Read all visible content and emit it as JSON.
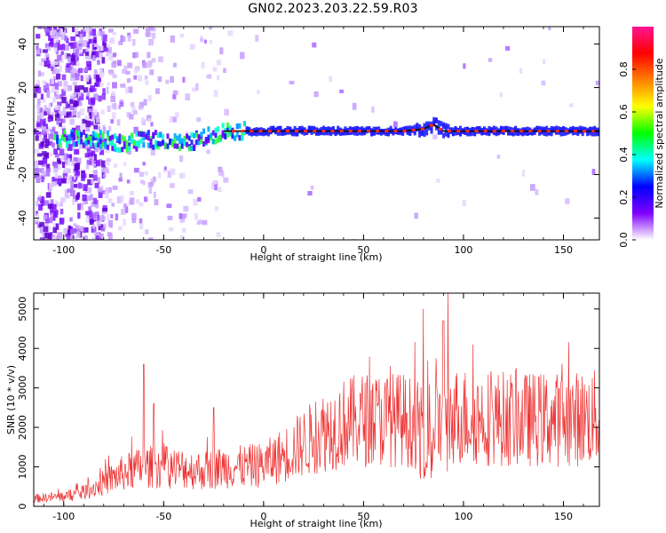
{
  "title": "GN02.2023.203.22.59.R03",
  "chart_data": [
    {
      "type": "heatmap",
      "xlabel": "Height of straight line (km)",
      "ylabel": "Frequency (Hz)",
      "xlim": [
        -115,
        168
      ],
      "ylim": [
        -50,
        48
      ],
      "xticks": [
        "-100",
        "-50",
        "0",
        "50",
        "100",
        "150"
      ],
      "yticks": [
        "-40",
        "-20",
        "0",
        "20",
        "40"
      ],
      "colorbar": {
        "label": "Normalized spectral amplitude",
        "range": [
          0,
          1
        ],
        "ticks": [
          "0.0",
          "0.2",
          "0.4",
          "0.6",
          "0.8"
        ],
        "colors": [
          "#ffffff",
          "#7f00ff",
          "#0000ff",
          "#00ffff",
          "#00ff00",
          "#ffff00",
          "#ff8000",
          "#ff0000",
          "#ff1493"
        ]
      },
      "trace": [
        {
          "x": -100,
          "y": -3
        },
        {
          "x": -90,
          "y": -4
        },
        {
          "x": -80,
          "y": -4
        },
        {
          "x": -70,
          "y": -6
        },
        {
          "x": -60,
          "y": -4
        },
        {
          "x": -50,
          "y": -4
        },
        {
          "x": -40,
          "y": -6
        },
        {
          "x": -30,
          "y": -3
        },
        {
          "x": -20,
          "y": 0
        },
        {
          "x": -10,
          "y": 0
        },
        {
          "x": 0,
          "y": 0
        },
        {
          "x": 50,
          "y": 0
        },
        {
          "x": 70,
          "y": 0
        },
        {
          "x": 80,
          "y": 1
        },
        {
          "x": 85,
          "y": 3
        },
        {
          "x": 90,
          "y": 0
        },
        {
          "x": 168,
          "y": 0
        }
      ]
    },
    {
      "type": "line",
      "xlabel": "Height of straight line (km)",
      "ylabel": "SNR (10 * v/v)",
      "xlim": [
        -115,
        168
      ],
      "ylim": [
        0,
        5400
      ],
      "xticks": [
        "-100",
        "-50",
        "0",
        "50",
        "100",
        "150"
      ],
      "yticks": [
        "0",
        "1000",
        "2000",
        "3000",
        "4000",
        "5000"
      ],
      "color": "#ee3333",
      "envelope": [
        {
          "x": -115,
          "y": 200
        },
        {
          "x": -100,
          "y": 250
        },
        {
          "x": -90,
          "y": 350
        },
        {
          "x": -80,
          "y": 600
        },
        {
          "x": -70,
          "y": 850
        },
        {
          "x": -60,
          "y": 1000
        },
        {
          "x": -50,
          "y": 1000
        },
        {
          "x": -40,
          "y": 950
        },
        {
          "x": -30,
          "y": 900
        },
        {
          "x": -20,
          "y": 1000
        },
        {
          "x": -10,
          "y": 1000
        },
        {
          "x": 0,
          "y": 1050
        },
        {
          "x": 10,
          "y": 1300
        },
        {
          "x": 20,
          "y": 1600
        },
        {
          "x": 30,
          "y": 1900
        },
        {
          "x": 40,
          "y": 2100
        },
        {
          "x": 50,
          "y": 2200
        },
        {
          "x": 60,
          "y": 2200
        },
        {
          "x": 70,
          "y": 2200
        },
        {
          "x": 80,
          "y": 2000
        },
        {
          "x": 90,
          "y": 2000
        },
        {
          "x": 95,
          "y": 2300
        },
        {
          "x": 110,
          "y": 2250
        },
        {
          "x": 130,
          "y": 2200
        },
        {
          "x": 150,
          "y": 2200
        },
        {
          "x": 168,
          "y": 2250
        }
      ],
      "peaks": [
        {
          "x": -60,
          "y": 3600
        },
        {
          "x": -55,
          "y": 2600
        },
        {
          "x": -25,
          "y": 2500
        },
        {
          "x": 80,
          "y": 5000
        },
        {
          "x": 90,
          "y": 4700
        },
        {
          "x": 92,
          "y": 5400
        }
      ]
    }
  ]
}
